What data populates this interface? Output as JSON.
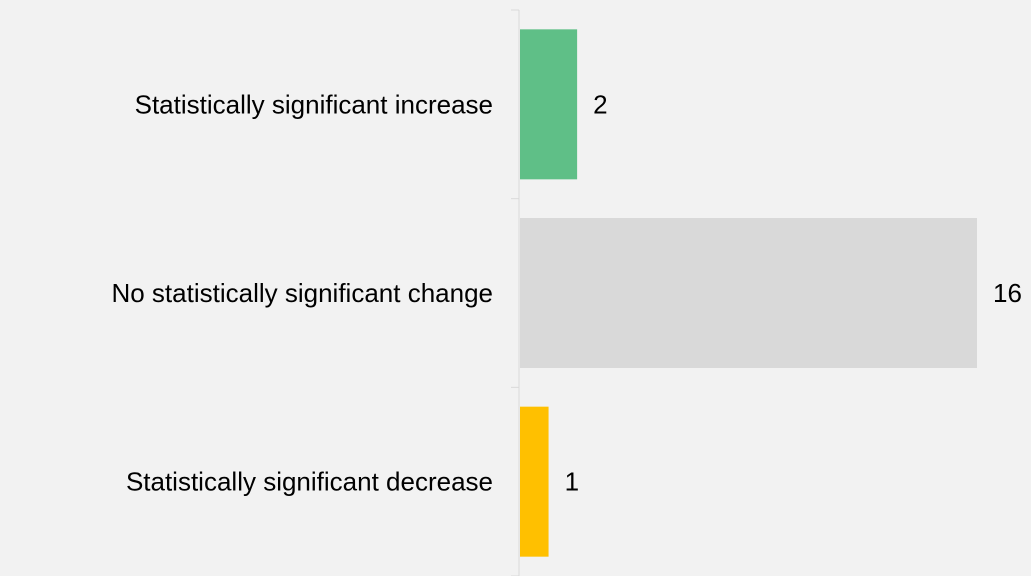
{
  "chart_data": {
    "type": "bar",
    "orientation": "horizontal",
    "categories": [
      "Statistically significant increase",
      "No statistically significant change",
      "Statistically significant decrease"
    ],
    "values": [
      2,
      16,
      1
    ],
    "colors": [
      "#5fbf87",
      "#d9d9d9",
      "#ffc000"
    ],
    "title": "",
    "xlabel": "",
    "ylabel": "",
    "xlim": [
      0,
      16
    ],
    "grid": false,
    "legend": "none"
  }
}
